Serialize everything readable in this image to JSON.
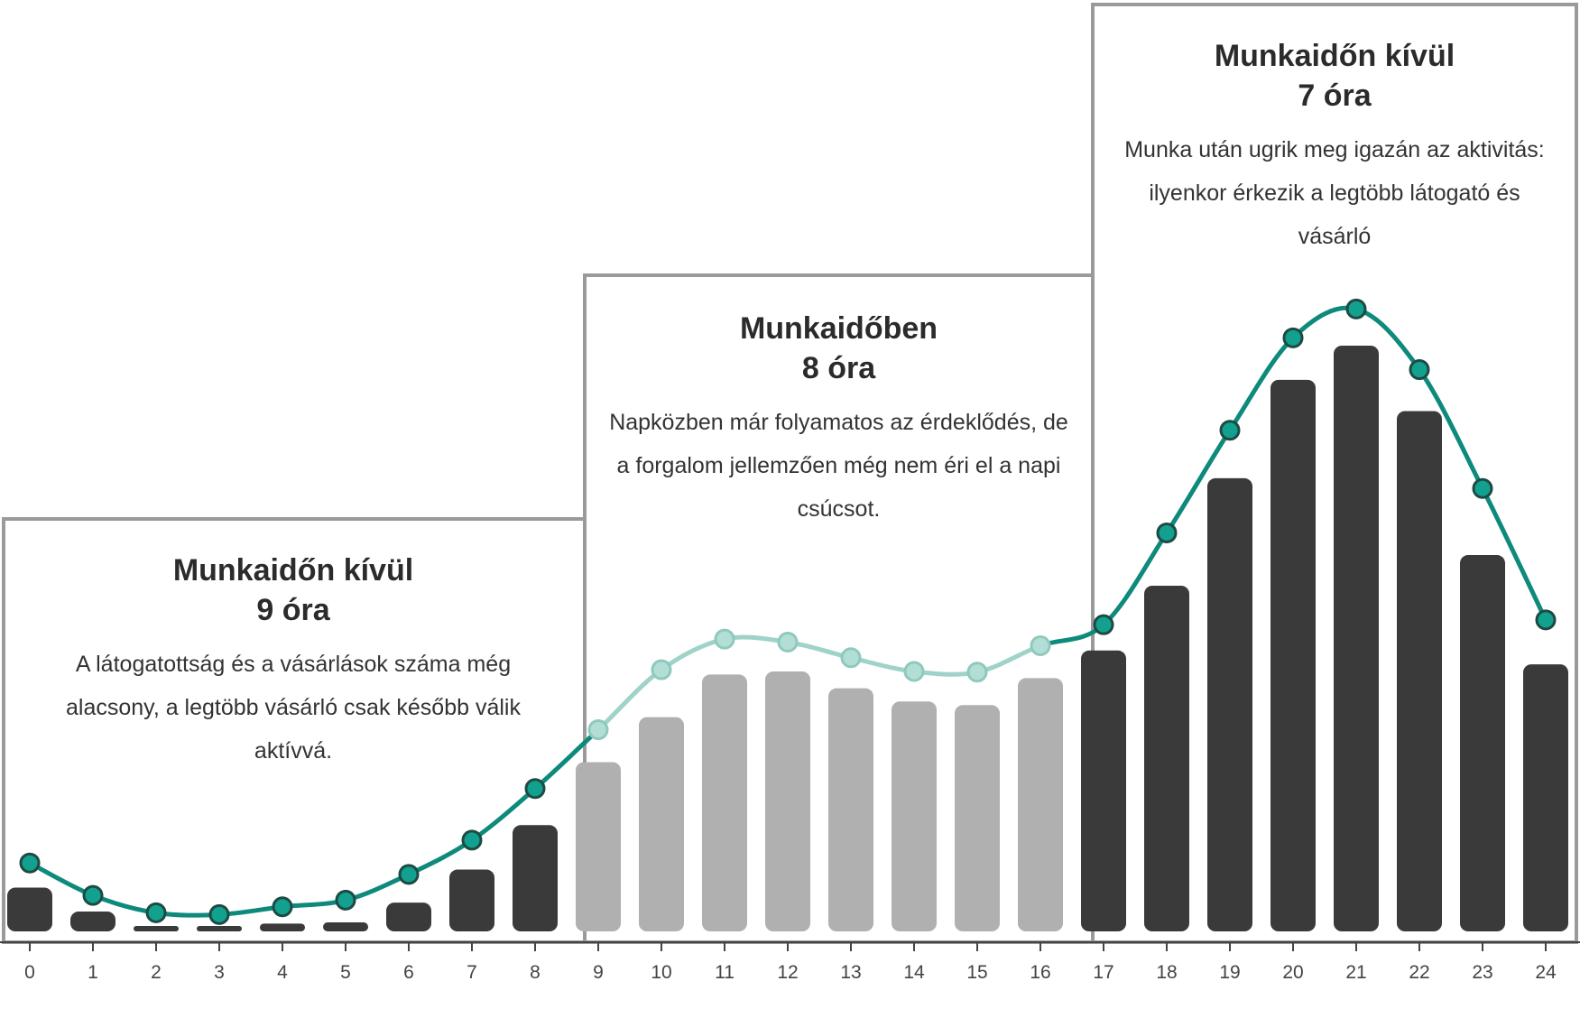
{
  "chart_data": {
    "type": "bar",
    "title": "",
    "xlabel": "",
    "ylabel": "",
    "categories": [
      "0",
      "1",
      "2",
      "3",
      "4",
      "5",
      "6",
      "7",
      "8",
      "9",
      "10",
      "11",
      "12",
      "13",
      "14",
      "15",
      "16",
      "17",
      "18",
      "19",
      "20",
      "21",
      "22",
      "23",
      "24"
    ],
    "series": [
      {
        "kind": "bar",
        "values": [
          7.3,
          3.3,
          0,
          0.8,
          1.3,
          1.5,
          4.8,
          10.3,
          17.7,
          28.2,
          35.7,
          42.8,
          43.3,
          40.5,
          38.3,
          37.7,
          42.2,
          46.8,
          57.6,
          75.5,
          91.9,
          97.6,
          86.7,
          62.7,
          44.5
        ]
      },
      {
        "kind": "line",
        "values": [
          11.4,
          6.0,
          3.1,
          2.8,
          4.1,
          5.2,
          9.5,
          15.2,
          23.8,
          33.6,
          43.6,
          48.7,
          48.2,
          45.6,
          43.3,
          43.2,
          47.6,
          51.1,
          66.4,
          83.5,
          98.9,
          103.7,
          93.6,
          73.8,
          51.9
        ]
      }
    ],
    "ylim": [
      0,
      110
    ],
    "grid": false,
    "legend": "none",
    "colors": {
      "bar_dark": "#3a3a3a",
      "bar_light": "#b0b0b0",
      "line_dark": "#0e8a7c",
      "line_light": "#9fd3c9",
      "marker_dark": "#12a08f",
      "marker_light": "#b3ded6",
      "marker_outline": "#1d4a43",
      "panel_border": "#9a9a9a"
    },
    "panels": [
      {
        "title": "Munkaidőn kívül",
        "hours": "9 óra",
        "desc": "A látogatottság és a vásárlások száma még alacsony, a legtöbb vásárló csak később válik aktívvá.",
        "from": 0,
        "to": 8,
        "tone": "dark"
      },
      {
        "title": "Munkaidőben",
        "hours": "8 óra",
        "desc": "Napközben már folyamatos az érdeklődés, de a forgalom jellemzően még nem éri el a napi csúcsot.",
        "from": 9,
        "to": 16,
        "tone": "light"
      },
      {
        "title": "Munkaidőn kívül",
        "hours": "7 óra",
        "desc": "Munka után ugrik meg igazán az aktivitás: ilyenkor érkezik a legtöbb látogató és vásárló",
        "from": 17,
        "to": 24,
        "tone": "dark"
      }
    ]
  }
}
